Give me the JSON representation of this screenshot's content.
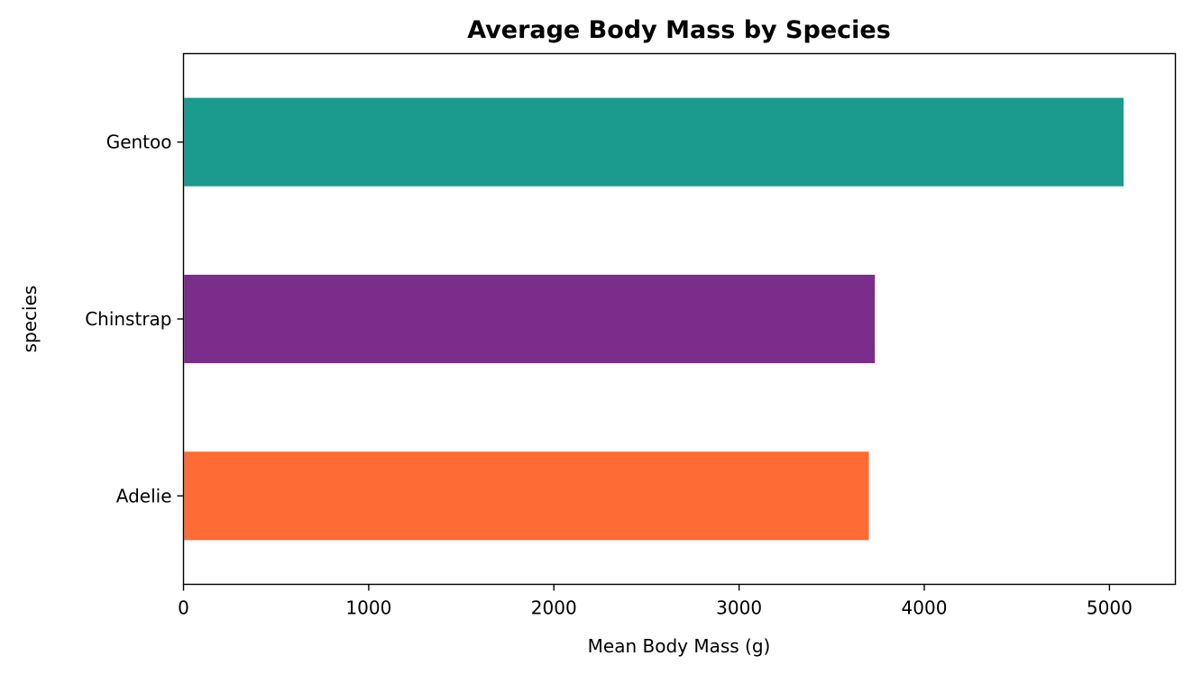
{
  "chart_data": {
    "type": "bar",
    "orientation": "horizontal",
    "title": "Average Body Mass by Species",
    "xlabel": "Mean Body Mass (g)",
    "ylabel": "species",
    "categories": [
      "Adelie",
      "Chinstrap",
      "Gentoo"
    ],
    "values": [
      3700.66,
      3733.09,
      5076.02
    ],
    "colors": [
      "#ff6b35",
      "#7b2d8b",
      "#1b9a8e"
    ],
    "xlim": [
      0,
      5356
    ],
    "xticks": [
      0,
      1000,
      2000,
      3000,
      4000,
      5000
    ],
    "grid": false,
    "legend": false
  }
}
